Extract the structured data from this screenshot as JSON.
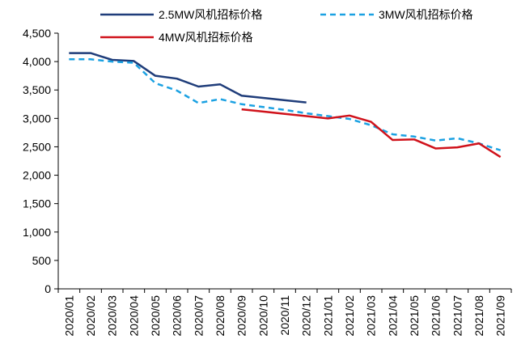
{
  "chart_data": {
    "type": "line",
    "title": "",
    "xlabel": "",
    "ylabel": "",
    "ylim": [
      0,
      4500
    ],
    "yticks": [
      0,
      500,
      1000,
      1500,
      2000,
      2500,
      3000,
      3500,
      4000,
      4500
    ],
    "ytick_labels": [
      "0",
      "500",
      "1,000",
      "1,500",
      "2,000",
      "2,500",
      "3,000",
      "3,500",
      "4,000",
      "4,500"
    ],
    "grid": false,
    "legend_position": "top",
    "categories": [
      "2020/01",
      "2020/02",
      "2020/03",
      "2020/04",
      "2020/05",
      "2020/06",
      "2020/07",
      "2020/08",
      "2020/09",
      "2020/10",
      "2020/11",
      "2020/12",
      "2021/01",
      "2021/02",
      "2021/03",
      "2021/04",
      "2021/05",
      "2021/06",
      "2021/07",
      "2021/08",
      "2021/09"
    ],
    "series": [
      {
        "name": "2.5MW风机招标价格",
        "color": "#1f3d7a",
        "style": "solid",
        "values": [
          4150,
          4150,
          4030,
          4010,
          3750,
          3700,
          3560,
          3600,
          3400,
          3360,
          3320,
          3280,
          null,
          null,
          null,
          null,
          null,
          null,
          null,
          null,
          null
        ]
      },
      {
        "name": "3MW风机招标价格",
        "color": "#1ba1e2",
        "style": "dashed",
        "values": [
          4040,
          4040,
          4000,
          3980,
          3620,
          3490,
          3270,
          3340,
          3250,
          3200,
          3150,
          3090,
          3040,
          2990,
          2880,
          2720,
          2680,
          2610,
          2650,
          2560,
          2440
        ]
      },
      {
        "name": "4MW风机招标价格",
        "color": "#d0121b",
        "style": "solid",
        "values": [
          null,
          null,
          null,
          null,
          null,
          null,
          null,
          null,
          3160,
          3120,
          3080,
          3040,
          3000,
          3050,
          2940,
          2620,
          2630,
          2470,
          2490,
          2560,
          2320
        ]
      }
    ]
  }
}
